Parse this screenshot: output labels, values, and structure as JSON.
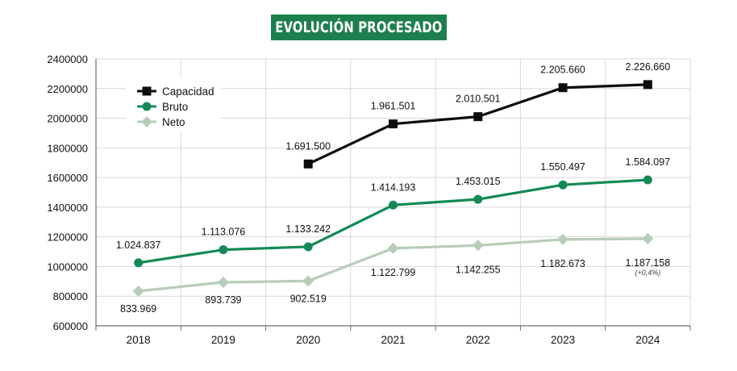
{
  "title": "EVOLUCIÓN PROCESADO",
  "colors": {
    "banner": "#1e7f4e",
    "capacidad": "#0d0d0d",
    "bruto": "#138a55",
    "neto": "#b7cdb9",
    "grid": "#d9d9d9",
    "axis": "#6e6e6e"
  },
  "chart_data": {
    "type": "line",
    "categories": [
      "2018",
      "2019",
      "2020",
      "2021",
      "2022",
      "2023",
      "2024"
    ],
    "ylim": [
      600000,
      2400000
    ],
    "yticks": [
      600000,
      800000,
      1000000,
      1200000,
      1400000,
      1600000,
      1800000,
      2000000,
      2200000,
      2400000
    ],
    "ytick_labels": [
      "600000",
      "800000",
      "1000000",
      "1200000",
      "1400000",
      "1600000",
      "1800000",
      "2000000",
      "2200000",
      "2400000"
    ],
    "grid": true,
    "legend": "top-left",
    "series": [
      {
        "name": "Capacidad",
        "color": "#0d0d0d",
        "marker": "square",
        "values": [
          null,
          null,
          1691500,
          1961501,
          2010501,
          2205660,
          2226660
        ],
        "labels": [
          null,
          null,
          "1.691.500",
          "1.961.501",
          "2.010.501",
          "2.205.660",
          "2.226.660"
        ]
      },
      {
        "name": "Bruto",
        "color": "#138a55",
        "marker": "circle",
        "values": [
          1024837,
          1113076,
          1133242,
          1414193,
          1453015,
          1550497,
          1584097
        ],
        "labels": [
          "1.024.837",
          "1.113.076",
          "1.133.242",
          "1.414.193",
          "1.453.015",
          "1.550.497",
          "1.584.097"
        ]
      },
      {
        "name": "Neto",
        "color": "#b7cdb9",
        "marker": "diamond",
        "values": [
          833969,
          893739,
          902519,
          1122799,
          1142255,
          1182673,
          1187158
        ],
        "labels": [
          "833.969",
          "893.739",
          "902.519",
          "1.122.799",
          "1.142.255",
          "1.182.673",
          "1.187.158"
        ]
      }
    ],
    "annotations": [
      {
        "series": "Neto",
        "category": "2024",
        "text": "(+0,4%)"
      }
    ]
  }
}
